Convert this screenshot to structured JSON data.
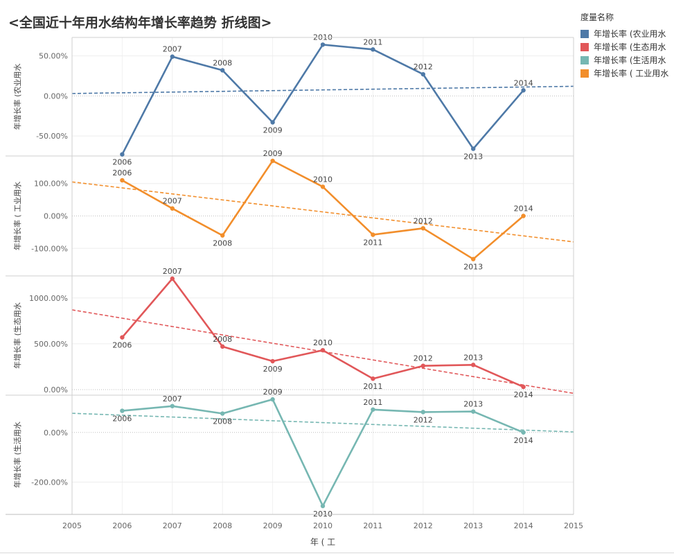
{
  "title": "<全国近十年用水结构年增长率趋势  折线图>",
  "legend": {
    "title": "度量名称",
    "items": [
      {
        "label": "年增长率 (农业用水",
        "color": "#4e79a7"
      },
      {
        "label": "年增长率 (生态用水",
        "color": "#e15759"
      },
      {
        "label": "年增长率 (生活用水",
        "color": "#76b7b2"
      },
      {
        "label": "年增长率 ( 工业用水",
        "color": "#f28e2b"
      }
    ]
  },
  "chart_data": {
    "type": "line",
    "x_axis": {
      "label": "年 ( 工",
      "ticks": [
        2005,
        2006,
        2007,
        2008,
        2009,
        2010,
        2011,
        2012,
        2013,
        2014,
        2015
      ],
      "range": [
        2005,
        2015
      ]
    },
    "grid": true,
    "panels": [
      {
        "ylabel": "年增长率 (农业用水",
        "color": "#4e79a7",
        "yrange": [
          -75,
          73
        ],
        "yticks": [
          50,
          0,
          -50
        ],
        "ytick_labels": [
          "50.00%",
          "0.00%",
          "-50.00%"
        ],
        "x": [
          2006,
          2007,
          2008,
          2009,
          2010,
          2011,
          2012,
          2013,
          2014
        ],
        "values": [
          -73,
          49,
          32,
          -33,
          64,
          58,
          27,
          -66,
          7
        ],
        "point_labels": [
          "2006",
          "2007",
          "2008",
          "2009",
          "2010",
          "2011",
          "2012",
          "2013",
          "2014"
        ],
        "trend": {
          "x": [
            2005,
            2015
          ],
          "y": [
            3,
            12
          ]
        }
      },
      {
        "ylabel": "年增长率 ( 工业用水",
        "color": "#f28e2b",
        "yrange": [
          -185,
          185
        ],
        "yticks": [
          100,
          0,
          -100
        ],
        "ytick_labels": [
          "100.00%",
          "0.00%",
          "-100.00%"
        ],
        "x": [
          2006,
          2007,
          2008,
          2009,
          2010,
          2011,
          2012,
          2013,
          2014
        ],
        "values": [
          110,
          23,
          -60,
          170,
          90,
          -58,
          -38,
          -133,
          0
        ],
        "point_labels": [
          "2006",
          "2007",
          "2008",
          "2009",
          "2010",
          "2011",
          "2012",
          "2013",
          "2014"
        ],
        "trend": {
          "x": [
            2005,
            2015
          ],
          "y": [
            105,
            -80
          ]
        }
      },
      {
        "ylabel": "年增长率 (生态用水",
        "color": "#e15759",
        "yrange": [
          -60,
          1240
        ],
        "yticks": [
          1000,
          500,
          0
        ],
        "ytick_labels": [
          "1000.00%",
          "500.00%",
          "0.00%"
        ],
        "x": [
          2006,
          2007,
          2008,
          2009,
          2010,
          2011,
          2012,
          2013,
          2014
        ],
        "values": [
          570,
          1210,
          470,
          310,
          430,
          120,
          260,
          270,
          30
        ],
        "point_labels": [
          "2006",
          "2007",
          "2008",
          "2009",
          "2010",
          "2011",
          "2012",
          "2013",
          "2014"
        ],
        "trend": {
          "x": [
            2005,
            2015
          ],
          "y": [
            870,
            -40
          ]
        }
      },
      {
        "ylabel": "年增长率 (生活用水",
        "color": "#76b7b2",
        "yrange": [
          -330,
          150
        ],
        "yticks": [
          0,
          -200
        ],
        "ytick_labels": [
          "0.00%",
          "-200.00%"
        ],
        "x": [
          2006,
          2007,
          2008,
          2009,
          2010,
          2011,
          2012,
          2013,
          2014
        ],
        "values": [
          87,
          106,
          76,
          133,
          -296,
          92,
          82,
          84,
          0
        ],
        "point_labels": [
          "2006",
          "2007",
          "2008",
          "2009",
          "2010",
          "2011",
          "2012",
          "2013",
          "2014"
        ],
        "trend": {
          "x": [
            2005,
            2015
          ],
          "y": [
            77,
            2
          ]
        }
      }
    ]
  }
}
